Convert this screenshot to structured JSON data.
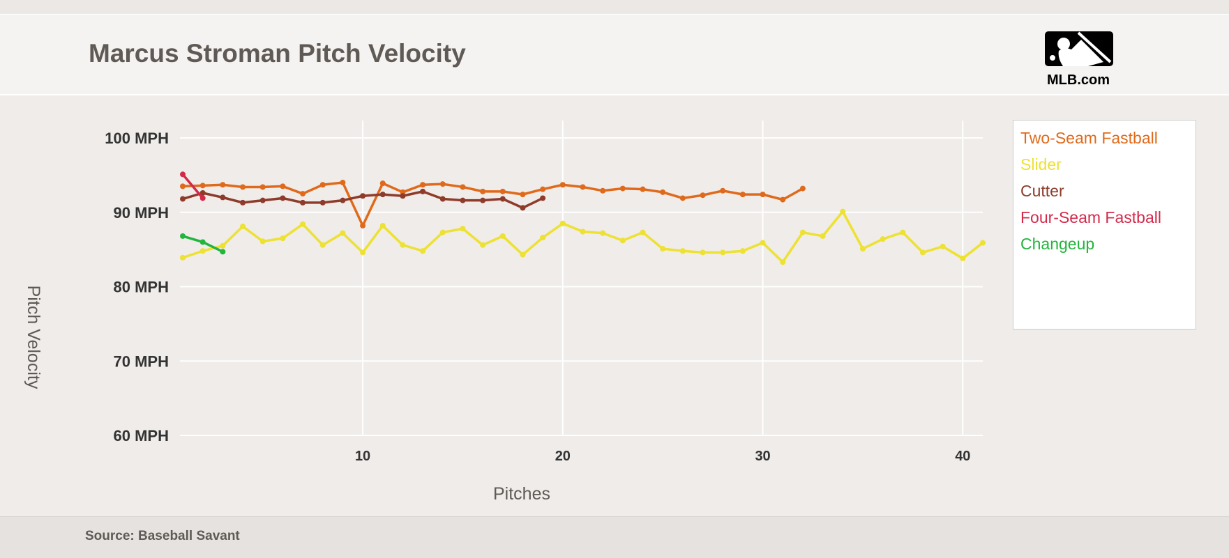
{
  "header": {
    "title": "Marcus Stroman Pitch Velocity",
    "logo_text": "MLB.com"
  },
  "footer": {
    "source": "Source: Baseball Savant"
  },
  "chart_data": {
    "type": "line",
    "title": "Marcus Stroman Pitch Velocity",
    "xlabel": "Pitches",
    "ylabel": "Pitch Velocity",
    "xlim": [
      1,
      41
    ],
    "ylim": [
      60,
      100
    ],
    "xticks": [
      10,
      20,
      30,
      40
    ],
    "yticks": [
      {
        "v": 60,
        "label": "60 MPH"
      },
      {
        "v": 70,
        "label": "70 MPH"
      },
      {
        "v": 80,
        "label": "80 MPH"
      },
      {
        "v": 90,
        "label": "90 MPH"
      },
      {
        "v": 100,
        "label": "100 MPH"
      }
    ],
    "grid": true,
    "legend_position": "right",
    "series": [
      {
        "name": "Two-Seam Fastball",
        "color": "#e06a1b",
        "values": [
          93.5,
          93.6,
          93.7,
          93.4,
          93.4,
          93.5,
          92.5,
          93.7,
          94.0,
          88.2,
          93.9,
          92.7,
          93.7,
          93.8,
          93.4,
          92.8,
          92.8,
          92.4,
          93.1,
          93.7,
          93.4,
          92.9,
          93.2,
          93.1,
          92.7,
          91.9,
          92.3,
          92.9,
          92.4,
          92.4,
          91.7,
          93.2
        ]
      },
      {
        "name": "Slider",
        "color": "#ede132",
        "values": [
          83.9,
          84.8,
          85.5,
          88.1,
          86.1,
          86.5,
          88.4,
          85.6,
          87.2,
          84.6,
          88.2,
          85.6,
          84.8,
          87.3,
          87.8,
          85.6,
          86.8,
          84.3,
          86.6,
          88.5,
          87.4,
          87.2,
          86.2,
          87.3,
          85.1,
          84.8,
          84.6,
          84.6,
          84.8,
          85.9,
          83.3,
          87.3,
          86.8,
          90.1,
          85.1,
          86.4,
          87.3,
          84.6,
          85.4,
          83.8,
          85.9
        ]
      },
      {
        "name": "Cutter",
        "color": "#8e3b2a",
        "values": [
          91.8,
          92.6,
          92.0,
          91.3,
          91.6,
          91.9,
          91.3,
          91.3,
          91.6,
          92.2,
          92.4,
          92.2,
          92.8,
          91.8,
          91.6,
          91.6,
          91.8,
          90.6,
          91.9
        ]
      },
      {
        "name": "Four-Seam Fastball",
        "color": "#d42a4a",
        "values": [
          95.1,
          91.9
        ]
      },
      {
        "name": "Changeup",
        "color": "#22b43c",
        "values": [
          86.8,
          86.0,
          84.7
        ]
      }
    ]
  }
}
